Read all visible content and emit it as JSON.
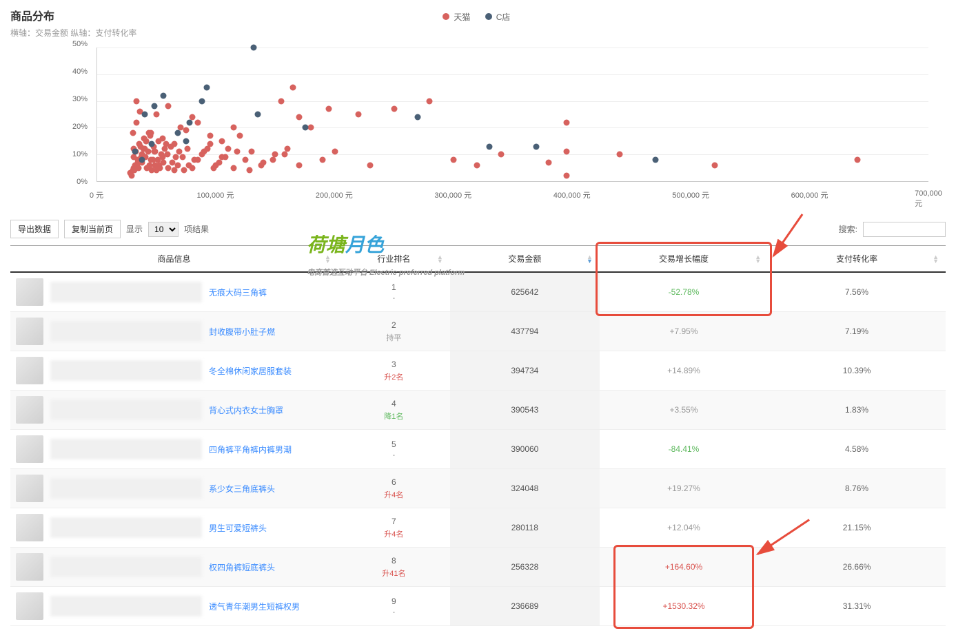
{
  "header": {
    "title": "商品分布",
    "subtitle": "横轴：交易金额  纵轴：支付转化率",
    "legend": [
      {
        "label": "天猫",
        "color": "#d7625e"
      },
      {
        "label": "C店",
        "color": "#4a6076"
      }
    ]
  },
  "chart": {
    "type": "scatter",
    "xlim": [
      0,
      700000
    ],
    "ylim": [
      0,
      50
    ],
    "xtick_step": 100000,
    "ytick_step": 10,
    "x_unit": "元",
    "y_unit": "%",
    "grid_color": "#eeeeee",
    "axis_color": "#cccccc",
    "series": {
      "tmall": {
        "color": "#d7625e"
      },
      "cshop": {
        "color": "#4a6076"
      }
    },
    "points_tmall": [
      [
        30000,
        4
      ],
      [
        32000,
        6
      ],
      [
        34000,
        8
      ],
      [
        28000,
        3
      ],
      [
        31000,
        5
      ],
      [
        35000,
        7
      ],
      [
        38000,
        10
      ],
      [
        40000,
        12
      ],
      [
        42000,
        5
      ],
      [
        45000,
        8
      ],
      [
        48000,
        11
      ],
      [
        50000,
        4
      ],
      [
        52000,
        6
      ],
      [
        55000,
        9
      ],
      [
        58000,
        14
      ],
      [
        30000,
        18
      ],
      [
        33000,
        22
      ],
      [
        36000,
        26
      ],
      [
        29000,
        2
      ],
      [
        31500,
        4
      ],
      [
        34500,
        7
      ],
      [
        37000,
        9
      ],
      [
        39000,
        12
      ],
      [
        41000,
        15
      ],
      [
        44000,
        6
      ],
      [
        47000,
        8
      ],
      [
        49000,
        11
      ],
      [
        53000,
        5
      ],
      [
        56000,
        7
      ],
      [
        59000,
        10
      ],
      [
        62000,
        13
      ],
      [
        65000,
        4
      ],
      [
        68000,
        6
      ],
      [
        72000,
        9
      ],
      [
        76000,
        12
      ],
      [
        80000,
        5
      ],
      [
        85000,
        8
      ],
      [
        90000,
        11
      ],
      [
        95000,
        14
      ],
      [
        100000,
        6
      ],
      [
        105000,
        9
      ],
      [
        110000,
        12
      ],
      [
        115000,
        5
      ],
      [
        120000,
        17
      ],
      [
        125000,
        8
      ],
      [
        130000,
        11
      ],
      [
        140000,
        7
      ],
      [
        150000,
        10
      ],
      [
        160000,
        12
      ],
      [
        170000,
        6
      ],
      [
        180000,
        20
      ],
      [
        190000,
        8
      ],
      [
        200000,
        11
      ],
      [
        165000,
        35
      ],
      [
        220000,
        25
      ],
      [
        230000,
        6
      ],
      [
        250000,
        27
      ],
      [
        280000,
        30
      ],
      [
        300000,
        8
      ],
      [
        320000,
        6
      ],
      [
        340000,
        10
      ],
      [
        380000,
        7
      ],
      [
        395000,
        2
      ],
      [
        395000,
        11
      ],
      [
        395000,
        22
      ],
      [
        440000,
        10
      ],
      [
        520000,
        6
      ],
      [
        640000,
        8
      ],
      [
        33000,
        30
      ],
      [
        50000,
        25
      ],
      [
        60000,
        28
      ],
      [
        70000,
        20
      ],
      [
        80000,
        24
      ],
      [
        45000,
        18
      ],
      [
        55000,
        16
      ],
      [
        65000,
        14
      ],
      [
        75000,
        19
      ],
      [
        85000,
        22
      ],
      [
        95000,
        17
      ],
      [
        105000,
        15
      ],
      [
        115000,
        20
      ],
      [
        35000,
        5
      ],
      [
        37500,
        7
      ],
      [
        40500,
        9
      ],
      [
        43000,
        11
      ],
      [
        46000,
        4
      ],
      [
        48500,
        6
      ],
      [
        51000,
        8
      ],
      [
        54000,
        10
      ],
      [
        57000,
        12
      ],
      [
        60000,
        5
      ],
      [
        63000,
        7
      ],
      [
        66000,
        9
      ],
      [
        69000,
        11
      ],
      [
        73000,
        4
      ],
      [
        77000,
        6
      ],
      [
        82000,
        8
      ],
      [
        88000,
        10
      ],
      [
        93000,
        12
      ],
      [
        98000,
        5
      ],
      [
        103000,
        7
      ],
      [
        108000,
        9
      ],
      [
        118000,
        11
      ],
      [
        128000,
        4
      ],
      [
        138000,
        6
      ],
      [
        148000,
        8
      ],
      [
        158000,
        10
      ],
      [
        30500,
        9
      ],
      [
        32500,
        11
      ],
      [
        36500,
        13
      ],
      [
        41500,
        15
      ],
      [
        44500,
        17
      ],
      [
        31000,
        12
      ],
      [
        35500,
        14
      ],
      [
        39500,
        16
      ],
      [
        43500,
        18
      ],
      [
        47500,
        13
      ],
      [
        51500,
        15
      ],
      [
        170000,
        24
      ],
      [
        195000,
        27
      ],
      [
        155000,
        30
      ]
    ],
    "points_cshop": [
      [
        32000,
        11
      ],
      [
        40000,
        25
      ],
      [
        48000,
        28
      ],
      [
        56000,
        32
      ],
      [
        75000,
        15
      ],
      [
        88000,
        30
      ],
      [
        92000,
        35
      ],
      [
        132000,
        50
      ],
      [
        135000,
        25
      ],
      [
        175000,
        20
      ],
      [
        270000,
        24
      ],
      [
        330000,
        13
      ],
      [
        370000,
        13
      ],
      [
        470000,
        8
      ],
      [
        38000,
        8
      ],
      [
        46000,
        14
      ],
      [
        68000,
        18
      ],
      [
        78000,
        22
      ]
    ]
  },
  "toolbar": {
    "export_btn": "导出数据",
    "copy_btn": "复制当前页",
    "show_label": "显示",
    "select_value": "10",
    "result_label": "项结果",
    "search_label": "搜索:",
    "search_value": ""
  },
  "table": {
    "columns": {
      "product": "商品信息",
      "rank": "行业排名",
      "amount": "交易金额",
      "growth": "交易增长幅度",
      "conversion": "支付转化率"
    },
    "sort_active": "amount_desc",
    "rows": [
      {
        "name": "无痕大码三角裤",
        "rank": 1,
        "rank_change": "-",
        "rank_type": "dash",
        "amount": "625642",
        "growth": "-52.78%",
        "growth_type": "neg",
        "highlight1": true,
        "conversion": "7.56%"
      },
      {
        "name": "封收腹带小肚子燃",
        "rank": 2,
        "rank_change": "持平",
        "rank_type": "flat",
        "amount": "437794",
        "growth": "+7.95%",
        "growth_type": "normal",
        "conversion": "7.19%"
      },
      {
        "name": "冬全棉休闲家居服套装",
        "rank": 3,
        "rank_change": "升2名",
        "rank_type": "up",
        "amount": "394734",
        "growth": "+14.89%",
        "growth_type": "normal",
        "conversion": "10.39%"
      },
      {
        "name": "背心式内衣女士胸罩",
        "rank": 4,
        "rank_change": "降1名",
        "rank_type": "down",
        "amount": "390543",
        "growth": "+3.55%",
        "growth_type": "normal",
        "conversion": "1.83%"
      },
      {
        "name": "四角裤平角裤内裤男潮",
        "rank": 5,
        "rank_change": "-",
        "rank_type": "dash",
        "amount": "390060",
        "growth": "-84.41%",
        "growth_type": "neg",
        "conversion": "4.58%"
      },
      {
        "name": "系少女三角底裤头",
        "rank": 6,
        "rank_change": "升4名",
        "rank_type": "up",
        "amount": "324048",
        "growth": "+19.27%",
        "growth_type": "normal",
        "conversion": "8.76%"
      },
      {
        "name": "男生可爱短裤头",
        "rank": 7,
        "rank_change": "升4名",
        "rank_type": "up",
        "amount": "280118",
        "growth": "+12.04%",
        "growth_type": "normal",
        "conversion": "21.15%"
      },
      {
        "name": "权四角裤短底裤头",
        "rank": 8,
        "rank_change": "升41名",
        "rank_type": "up",
        "amount": "256328",
        "growth": "+164.60%",
        "growth_type": "pos",
        "highlight2": true,
        "conversion": "26.66%"
      },
      {
        "name": "透气青年潮男生短裤权男",
        "rank": 9,
        "rank_change": "-",
        "rank_type": "dash",
        "amount": "236689",
        "growth": "+1530.32%",
        "growth_type": "pos",
        "highlight2": true,
        "conversion": "31.31%"
      }
    ]
  },
  "watermark": {
    "text": "荷塘月色",
    "colors": [
      "#7ab51d",
      "#7ab51d",
      "#36a3d9",
      "#36a3d9"
    ],
    "platform": "电商首选互动平台 Electric preferred platform"
  },
  "highlights": {
    "box1": {
      "border": "#e74c3c"
    },
    "box2": {
      "border": "#e74c3c"
    },
    "arrow_color": "#e74c3c"
  }
}
